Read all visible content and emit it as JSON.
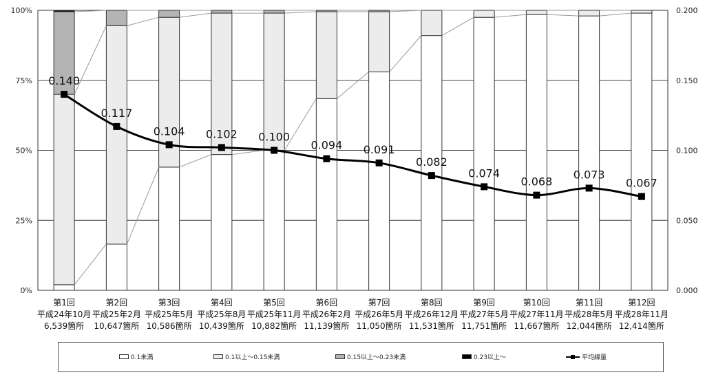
{
  "chart_data": {
    "type": "bar",
    "stacked": true,
    "categories": [
      [
        "第1回",
        "平成24年10月",
        "6,539箇所"
      ],
      [
        "第2回",
        "平成25年2月",
        "10,647箇所"
      ],
      [
        "第3回",
        "平成25年5月",
        "10,586箇所"
      ],
      [
        "第4回",
        "平成25年8月",
        "10,439箇所"
      ],
      [
        "第5回",
        "平成25年11月",
        "10,882箇所"
      ],
      [
        "第6回",
        "平成26年2月",
        "11,139箇所"
      ],
      [
        "第7回",
        "平成26年5月",
        "11,050箇所"
      ],
      [
        "第8回",
        "平成26年12月",
        "11,531箇所"
      ],
      [
        "第9回",
        "平成27年5月",
        "11,751箇所"
      ],
      [
        "第10回",
        "平成27年11月",
        "11,667箇所"
      ],
      [
        "第11回",
        "平成28年5月",
        "12,044箇所"
      ],
      [
        "第12回",
        "平成28年11月",
        "12,414箇所"
      ]
    ],
    "series": [
      {
        "name": "0.1未満",
        "color": "#ffffff",
        "values": [
          2,
          16.5,
          44,
          48.5,
          50,
          68.5,
          78,
          91,
          97.5,
          98.5,
          98,
          99
        ]
      },
      {
        "name": "0.1以上～0.15未満",
        "color": "#ececec",
        "values": [
          68,
          78,
          53.5,
          50.5,
          49,
          31,
          21.5,
          9,
          2.5,
          1.5,
          2,
          1
        ]
      },
      {
        "name": "0.15以上～0.23未満",
        "color": "#b4b4b4",
        "values": [
          29.5,
          5.5,
          2.5,
          1,
          1,
          0.5,
          0.5,
          0,
          0,
          0,
          0,
          0
        ]
      },
      {
        "name": "0.23以上～",
        "color": "#000000",
        "values": [
          0.5,
          0,
          0,
          0,
          0,
          0,
          0,
          0,
          0,
          0,
          0,
          0
        ]
      }
    ],
    "line_series": {
      "name": "平均線量",
      "axis": "right",
      "values": [
        0.14,
        0.117,
        0.104,
        0.102,
        0.1,
        0.094,
        0.091,
        0.082,
        0.074,
        0.068,
        0.073,
        0.067
      ],
      "labels": [
        "0.140",
        "0.117",
        "0.104",
        "0.102",
        "0.100",
        "0.094",
        "0.091",
        "0.082",
        "0.074",
        "0.068",
        "0.073",
        "0.067"
      ]
    },
    "y_left": {
      "ticks": [
        0,
        25,
        50,
        75,
        100
      ],
      "tick_labels": [
        "0%",
        "25%",
        "50%",
        "75%",
        "100%"
      ],
      "lim": [
        0,
        100
      ]
    },
    "y_right": {
      "ticks": [
        0,
        0.05,
        0.1,
        0.15,
        0.2
      ],
      "tick_labels": [
        "0.000",
        "0.050",
        "0.100",
        "0.150",
        "0.200"
      ],
      "lim": [
        0,
        0.2
      ]
    },
    "grid": true,
    "legend_position": "bottom"
  },
  "legend": [
    {
      "label": "0.1未満",
      "color": "#ffffff",
      "kind": "box"
    },
    {
      "label": "0.1以上～0.15未満",
      "color": "#ececec",
      "kind": "box"
    },
    {
      "label": "0.15以上～0.23未満",
      "color": "#b4b4b4",
      "kind": "box"
    },
    {
      "label": "0.23以上～",
      "color": "#000000",
      "kind": "box"
    },
    {
      "label": "平均線量",
      "color": "#000000",
      "kind": "line"
    }
  ]
}
